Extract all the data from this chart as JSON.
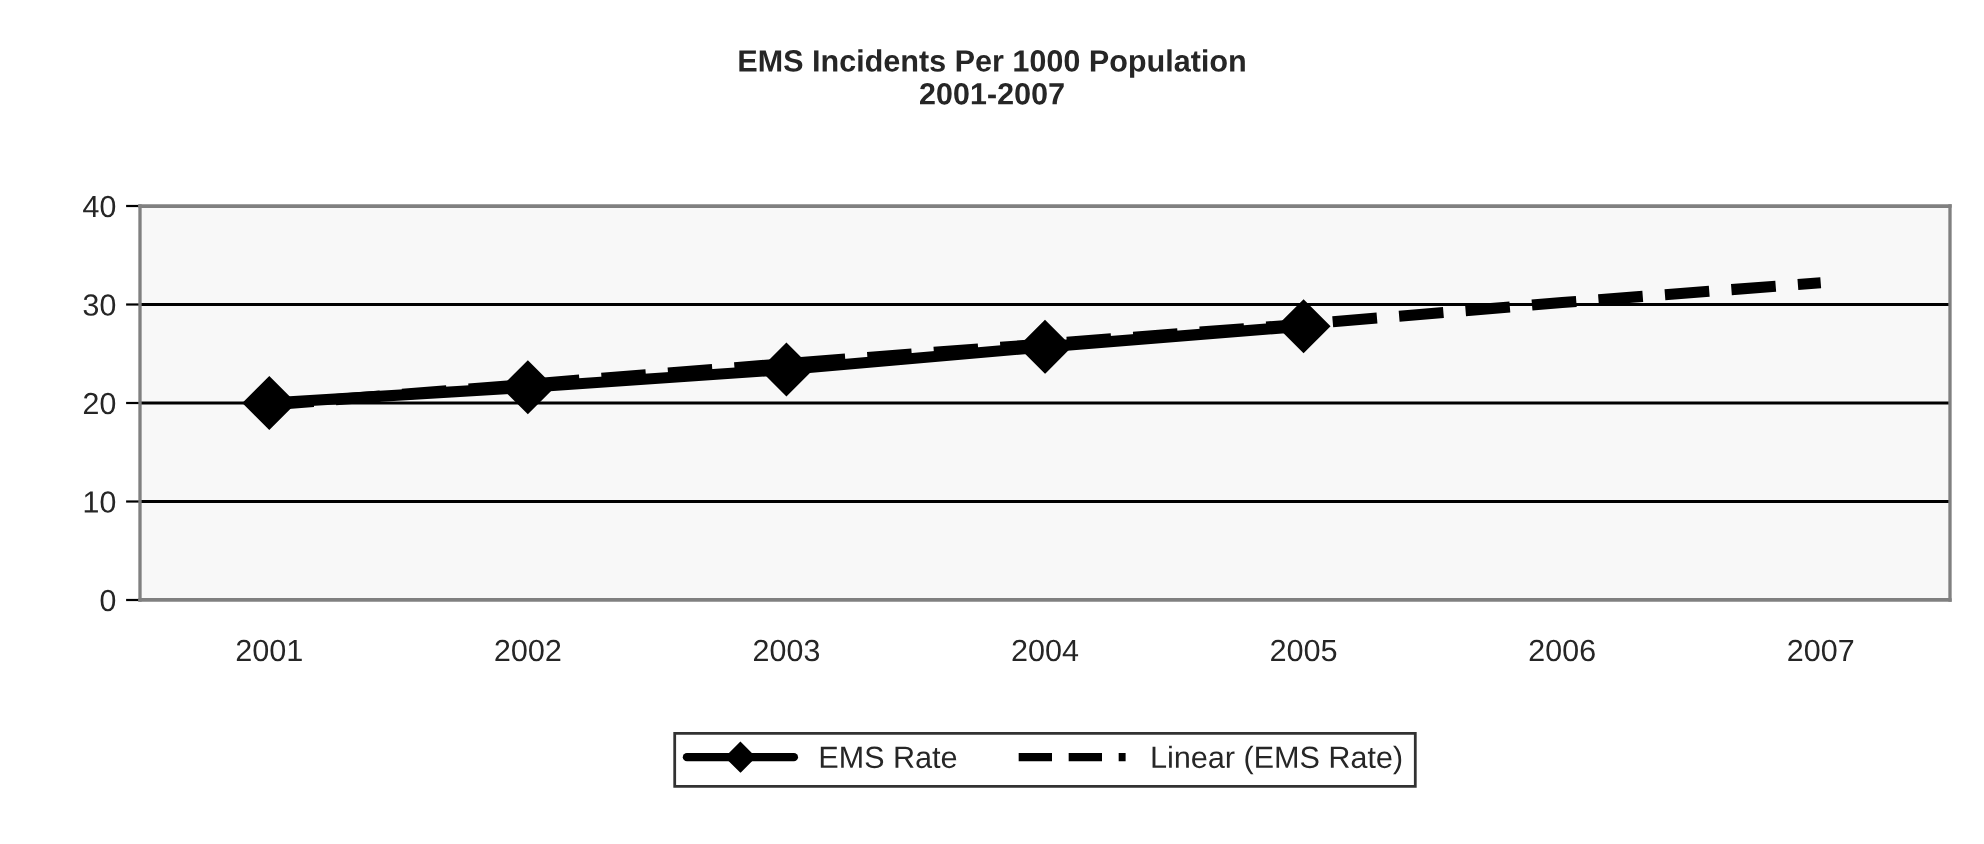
{
  "chart_data": {
    "type": "line",
    "title": "EMS Incidents Per 1000 Population\n2001-2007",
    "categories": [
      "2001",
      "2002",
      "2003",
      "2004",
      "2005",
      "2006",
      "2007"
    ],
    "series": [
      {
        "name": "EMS Rate",
        "color": "#000000",
        "marker": "diamond",
        "line_style": "solid",
        "values": [
          20.0,
          21.6,
          23.4,
          25.7,
          27.8,
          null,
          null
        ]
      },
      {
        "name": "Linear (EMS Rate)",
        "color": "#000000",
        "marker": "none",
        "line_style": "dashed",
        "values": [
          19.8,
          21.9,
          24.0,
          26.0,
          28.0,
          30.2,
          32.2
        ]
      }
    ],
    "ylim": [
      0,
      40
    ],
    "yticks": [
      0,
      10,
      20,
      30,
      40
    ],
    "grid": "y",
    "legend": "bottom"
  }
}
